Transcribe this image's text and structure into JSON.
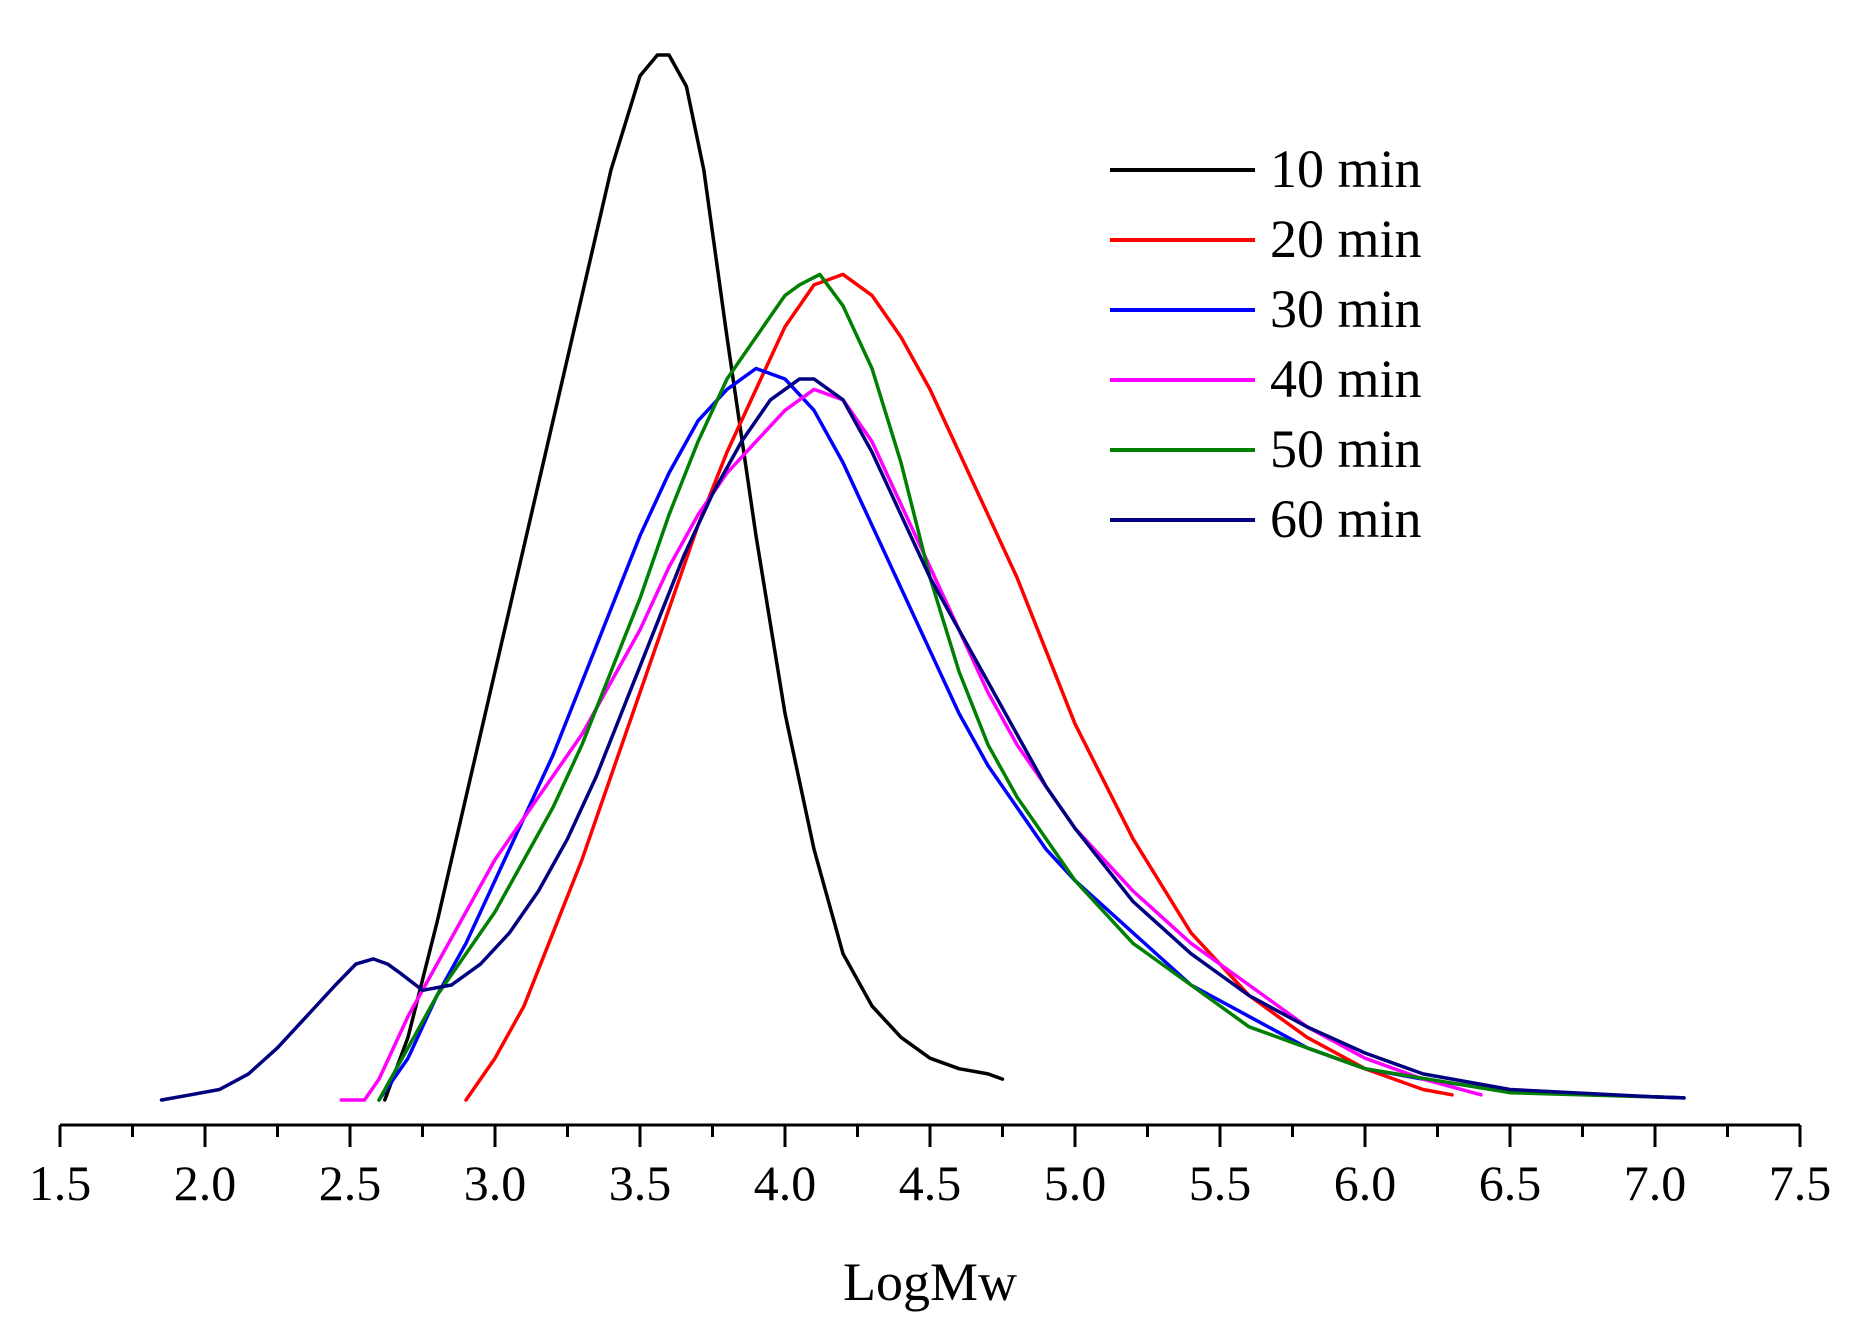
{
  "chart_data": {
    "type": "line",
    "title": "",
    "xlabel": "LogMw",
    "ylabel": "",
    "xlim": [
      1.5,
      7.5
    ],
    "ylim": [
      0,
      1.0
    ],
    "x_ticks": [
      "1.5",
      "2.0",
      "2.5",
      "3.0",
      "3.5",
      "4.0",
      "4.5",
      "5.0",
      "5.5",
      "6.0",
      "6.5",
      "7.0",
      "7.5"
    ],
    "y_axis_visible": false,
    "grid": false,
    "legend_position": "top-right",
    "series": [
      {
        "name": "10 min",
        "color": "#000000",
        "points": [
          [
            2.62,
            0.0
          ],
          [
            2.7,
            0.06
          ],
          [
            2.8,
            0.17
          ],
          [
            2.9,
            0.29
          ],
          [
            3.0,
            0.41
          ],
          [
            3.1,
            0.53
          ],
          [
            3.2,
            0.65
          ],
          [
            3.3,
            0.77
          ],
          [
            3.4,
            0.89
          ],
          [
            3.5,
            0.98
          ],
          [
            3.56,
            1.0
          ],
          [
            3.6,
            1.0
          ],
          [
            3.66,
            0.97
          ],
          [
            3.72,
            0.89
          ],
          [
            3.8,
            0.73
          ],
          [
            3.9,
            0.54
          ],
          [
            4.0,
            0.37
          ],
          [
            4.1,
            0.24
          ],
          [
            4.2,
            0.14
          ],
          [
            4.3,
            0.09
          ],
          [
            4.4,
            0.06
          ],
          [
            4.5,
            0.04
          ],
          [
            4.6,
            0.03
          ],
          [
            4.7,
            0.025
          ],
          [
            4.75,
            0.02
          ]
        ]
      },
      {
        "name": "20 min",
        "color": "#ff0000",
        "points": [
          [
            2.9,
            0.0
          ],
          [
            3.0,
            0.04
          ],
          [
            3.1,
            0.09
          ],
          [
            3.2,
            0.16
          ],
          [
            3.3,
            0.23
          ],
          [
            3.4,
            0.31
          ],
          [
            3.5,
            0.39
          ],
          [
            3.6,
            0.47
          ],
          [
            3.7,
            0.55
          ],
          [
            3.8,
            0.62
          ],
          [
            3.9,
            0.68
          ],
          [
            4.0,
            0.74
          ],
          [
            4.1,
            0.78
          ],
          [
            4.2,
            0.79
          ],
          [
            4.3,
            0.77
          ],
          [
            4.4,
            0.73
          ],
          [
            4.5,
            0.68
          ],
          [
            4.6,
            0.62
          ],
          [
            4.7,
            0.56
          ],
          [
            4.8,
            0.5
          ],
          [
            4.9,
            0.43
          ],
          [
            5.0,
            0.36
          ],
          [
            5.2,
            0.25
          ],
          [
            5.4,
            0.16
          ],
          [
            5.6,
            0.1
          ],
          [
            5.8,
            0.06
          ],
          [
            6.0,
            0.03
          ],
          [
            6.2,
            0.01
          ],
          [
            6.3,
            0.005
          ]
        ]
      },
      {
        "name": "30 min",
        "color": "#0000ff",
        "points": [
          [
            2.6,
            0.0
          ],
          [
            2.7,
            0.04
          ],
          [
            2.8,
            0.1
          ],
          [
            2.9,
            0.15
          ],
          [
            3.0,
            0.21
          ],
          [
            3.1,
            0.27
          ],
          [
            3.2,
            0.33
          ],
          [
            3.3,
            0.4
          ],
          [
            3.4,
            0.47
          ],
          [
            3.5,
            0.54
          ],
          [
            3.6,
            0.6
          ],
          [
            3.7,
            0.65
          ],
          [
            3.8,
            0.68
          ],
          [
            3.9,
            0.7
          ],
          [
            4.0,
            0.69
          ],
          [
            4.1,
            0.66
          ],
          [
            4.2,
            0.61
          ],
          [
            4.3,
            0.55
          ],
          [
            4.4,
            0.49
          ],
          [
            4.5,
            0.43
          ],
          [
            4.6,
            0.37
          ],
          [
            4.7,
            0.32
          ],
          [
            4.8,
            0.28
          ],
          [
            4.9,
            0.24
          ],
          [
            5.0,
            0.21
          ],
          [
            5.2,
            0.16
          ],
          [
            5.4,
            0.11
          ],
          [
            5.6,
            0.08
          ],
          [
            5.8,
            0.05
          ],
          [
            6.0,
            0.03
          ],
          [
            6.2,
            0.02
          ],
          [
            6.5,
            0.008
          ],
          [
            7.0,
            0.003
          ],
          [
            7.1,
            0.002
          ]
        ]
      },
      {
        "name": "40 min",
        "color": "#ff00ff",
        "points": [
          [
            2.47,
            0.0
          ],
          [
            2.55,
            0.0
          ],
          [
            2.6,
            0.02
          ],
          [
            2.7,
            0.08
          ],
          [
            2.8,
            0.13
          ],
          [
            2.9,
            0.18
          ],
          [
            3.0,
            0.23
          ],
          [
            3.1,
            0.27
          ],
          [
            3.2,
            0.31
          ],
          [
            3.3,
            0.35
          ],
          [
            3.4,
            0.4
          ],
          [
            3.5,
            0.45
          ],
          [
            3.6,
            0.51
          ],
          [
            3.7,
            0.56
          ],
          [
            3.8,
            0.6
          ],
          [
            3.9,
            0.63
          ],
          [
            4.0,
            0.66
          ],
          [
            4.1,
            0.68
          ],
          [
            4.2,
            0.67
          ],
          [
            4.3,
            0.63
          ],
          [
            4.4,
            0.57
          ],
          [
            4.5,
            0.51
          ],
          [
            4.6,
            0.45
          ],
          [
            4.7,
            0.39
          ],
          [
            4.8,
            0.34
          ],
          [
            4.9,
            0.3
          ],
          [
            5.0,
            0.26
          ],
          [
            5.2,
            0.2
          ],
          [
            5.4,
            0.15
          ],
          [
            5.6,
            0.11
          ],
          [
            5.8,
            0.07
          ],
          [
            6.0,
            0.04
          ],
          [
            6.2,
            0.02
          ],
          [
            6.4,
            0.005
          ]
        ]
      },
      {
        "name": "50 min",
        "color": "#008000",
        "points": [
          [
            2.6,
            0.0
          ],
          [
            2.7,
            0.05
          ],
          [
            2.8,
            0.1
          ],
          [
            2.9,
            0.14
          ],
          [
            3.0,
            0.18
          ],
          [
            3.1,
            0.23
          ],
          [
            3.2,
            0.28
          ],
          [
            3.3,
            0.34
          ],
          [
            3.4,
            0.41
          ],
          [
            3.5,
            0.48
          ],
          [
            3.6,
            0.56
          ],
          [
            3.7,
            0.63
          ],
          [
            3.8,
            0.69
          ],
          [
            3.9,
            0.73
          ],
          [
            4.0,
            0.77
          ],
          [
            4.05,
            0.78
          ],
          [
            4.12,
            0.79
          ],
          [
            4.2,
            0.76
          ],
          [
            4.3,
            0.7
          ],
          [
            4.4,
            0.61
          ],
          [
            4.5,
            0.5
          ],
          [
            4.6,
            0.41
          ],
          [
            4.7,
            0.34
          ],
          [
            4.8,
            0.29
          ],
          [
            4.9,
            0.25
          ],
          [
            5.0,
            0.21
          ],
          [
            5.2,
            0.15
          ],
          [
            5.4,
            0.11
          ],
          [
            5.6,
            0.07
          ],
          [
            5.8,
            0.05
          ],
          [
            6.0,
            0.03
          ],
          [
            6.5,
            0.007
          ],
          [
            7.0,
            0.003
          ],
          [
            7.1,
            0.002
          ]
        ]
      },
      {
        "name": "60 min",
        "color": "#000080",
        "points": [
          [
            1.85,
            0.0
          ],
          [
            1.95,
            0.005
          ],
          [
            2.05,
            0.01
          ],
          [
            2.15,
            0.025
          ],
          [
            2.25,
            0.05
          ],
          [
            2.35,
            0.08
          ],
          [
            2.45,
            0.11
          ],
          [
            2.52,
            0.13
          ],
          [
            2.58,
            0.135
          ],
          [
            2.63,
            0.13
          ],
          [
            2.68,
            0.12
          ],
          [
            2.75,
            0.105
          ],
          [
            2.85,
            0.11
          ],
          [
            2.95,
            0.13
          ],
          [
            3.05,
            0.16
          ],
          [
            3.15,
            0.2
          ],
          [
            3.25,
            0.25
          ],
          [
            3.35,
            0.31
          ],
          [
            3.45,
            0.38
          ],
          [
            3.55,
            0.45
          ],
          [
            3.65,
            0.52
          ],
          [
            3.75,
            0.58
          ],
          [
            3.85,
            0.63
          ],
          [
            3.95,
            0.67
          ],
          [
            4.05,
            0.69
          ],
          [
            4.1,
            0.69
          ],
          [
            4.2,
            0.67
          ],
          [
            4.3,
            0.62
          ],
          [
            4.4,
            0.56
          ],
          [
            4.5,
            0.5
          ],
          [
            4.6,
            0.45
          ],
          [
            4.7,
            0.4
          ],
          [
            4.8,
            0.35
          ],
          [
            4.9,
            0.3
          ],
          [
            5.0,
            0.26
          ],
          [
            5.2,
            0.19
          ],
          [
            5.4,
            0.14
          ],
          [
            5.6,
            0.1
          ],
          [
            5.8,
            0.07
          ],
          [
            6.0,
            0.045
          ],
          [
            6.2,
            0.025
          ],
          [
            6.5,
            0.01
          ],
          [
            7.0,
            0.003
          ],
          [
            7.1,
            0.002
          ]
        ]
      }
    ]
  }
}
